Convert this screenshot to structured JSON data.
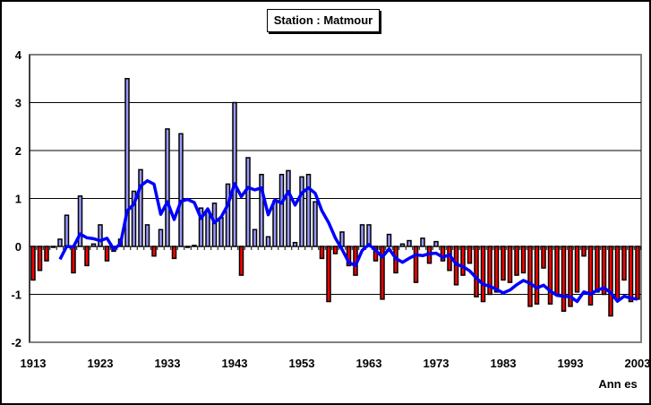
{
  "chart_data": {
    "type": "bar",
    "title": "Station : Matmour",
    "xlabel": "Ann es",
    "ylabel": "",
    "ylim": [
      -2,
      4
    ],
    "yticks": [
      "4",
      "3",
      "2",
      "1",
      "0",
      "-1",
      "-2"
    ],
    "xticks": [
      "1913",
      "1923",
      "1933",
      "1943",
      "1953",
      "1963",
      "1973",
      "1983",
      "1993",
      "2003"
    ],
    "start_year": 1913,
    "values": [
      -0.7,
      -0.5,
      -0.3,
      0.0,
      0.15,
      0.65,
      -0.55,
      1.05,
      -0.4,
      0.05,
      0.45,
      -0.3,
      -0.1,
      0.15,
      3.5,
      1.15,
      1.6,
      0.45,
      -0.2,
      0.35,
      2.45,
      -0.25,
      2.35,
      0.0,
      0.02,
      0.8,
      0.75,
      0.9,
      0.6,
      1.3,
      3.0,
      -0.6,
      1.85,
      0.35,
      1.5,
      0.2,
      0.95,
      1.5,
      1.58,
      0.08,
      1.45,
      1.5,
      0.93,
      -0.25,
      -1.15,
      -0.15,
      0.3,
      -0.4,
      -0.6,
      0.45,
      0.45,
      -0.3,
      -1.1,
      0.25,
      -0.55,
      0.05,
      0.12,
      -0.75,
      0.17,
      -0.35,
      0.1,
      -0.3,
      -0.5,
      -0.8,
      -0.6,
      -0.35,
      -1.05,
      -1.15,
      -1.0,
      -0.95,
      -0.7,
      -0.75,
      -0.6,
      -0.55,
      -1.25,
      -1.2,
      -0.45,
      -1.2,
      -1.0,
      -1.35,
      -1.25,
      -0.95,
      -0.2,
      -1.22,
      -0.95,
      -1.0,
      -1.45,
      -1.1,
      -0.7,
      -1.15,
      -1.1
    ],
    "moving_average_window": 5,
    "grid": true,
    "colors": {
      "positive": "#9999ff",
      "negative": "#ff0000",
      "outline": "#000000",
      "moving_average": "#0000ff"
    }
  }
}
